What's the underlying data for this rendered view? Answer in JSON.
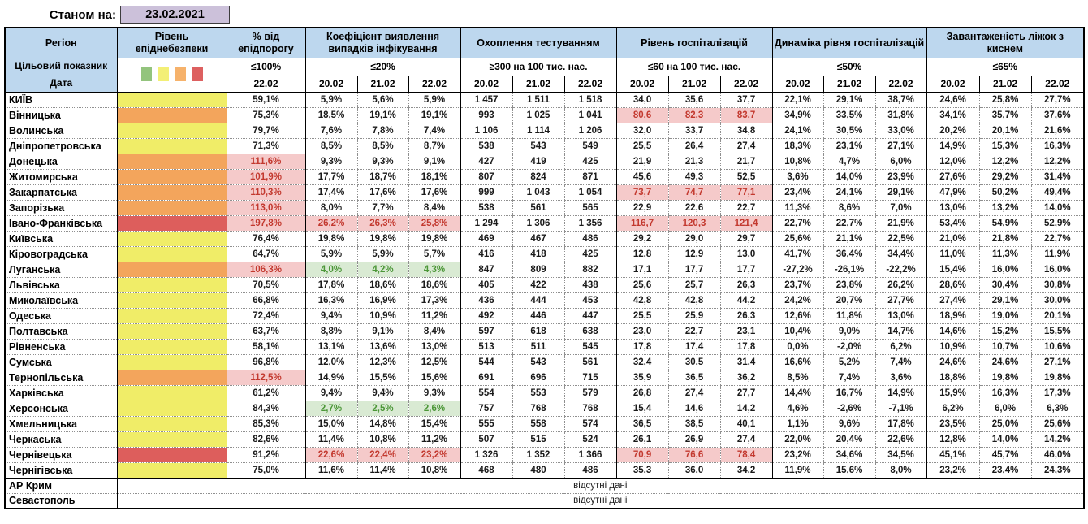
{
  "meta": {
    "as_of_label": "Станом на:",
    "as_of_date": "23.02.2021"
  },
  "header": {
    "region_label": "Регіон",
    "danger_label": "Рівень епіднебезпеки",
    "target_row_label": "Цільовий показник",
    "date_row_label": "Дата",
    "groups": [
      {
        "title": "% від епідпорогу",
        "target": "≤100%",
        "dates": [
          "22.02"
        ]
      },
      {
        "title": "Коефіцієнт виявлення випадків інфікування",
        "target": "≤20%",
        "dates": [
          "20.02",
          "21.02",
          "22.02"
        ]
      },
      {
        "title": "Охоплення тестуванням",
        "target": "≥300 на 100 тис. нас.",
        "dates": [
          "20.02",
          "21.02",
          "22.02"
        ]
      },
      {
        "title": "Рівень госпіталізацій",
        "target": "≤60 на 100 тис. нас.",
        "dates": [
          "20.02",
          "21.02",
          "22.02"
        ]
      },
      {
        "title": "Динаміка рівня госпіталізацій",
        "target": "≤50%",
        "dates": [
          "20.02",
          "21.02",
          "22.02"
        ]
      },
      {
        "title": "Завантаженість ліжок з киснем",
        "target": "≤65%",
        "dates": [
          "20.02",
          "21.02",
          "22.02"
        ]
      }
    ]
  },
  "legend_squares": [
    "green",
    "yellow",
    "orange",
    "red"
  ],
  "colors": {
    "header_bg": "#bdd7ee",
    "datebox_bg": "#ccc1da",
    "level_yellow": "#f0ed68",
    "level_orange": "#f3a55c",
    "level_red": "#dd5e5c",
    "legend_green": "#93c47d",
    "legend_yellow": "#f3ef76",
    "legend_orange": "#f6b26b",
    "legend_red": "#dd6060",
    "bad_bg": "#f5caca",
    "bad_text": "#c3392f",
    "good_bg": "#d9ead3",
    "good_text": "#4b9637"
  },
  "no_data_label": "відсутні дані",
  "rows": [
    {
      "region": "КИЇВ",
      "level": "yellow",
      "threshold": "59,1%",
      "detection": [
        "5,9%",
        "5,6%",
        "5,9%"
      ],
      "testing": [
        "1 457",
        "1 511",
        "1 518"
      ],
      "hospitalization": [
        "34,0",
        "35,6",
        "37,7"
      ],
      "dynamics": [
        "22,1%",
        "29,1%",
        "38,7%"
      ],
      "beds": [
        "24,6%",
        "25,8%",
        "27,7%"
      ],
      "hl": {}
    },
    {
      "region": "Вінницька",
      "level": "orange",
      "threshold": "75,3%",
      "detection": [
        "18,5%",
        "19,1%",
        "19,1%"
      ],
      "testing": [
        "993",
        "1 025",
        "1 041"
      ],
      "hospitalization": [
        "80,6",
        "82,3",
        "83,7"
      ],
      "dynamics": [
        "34,9%",
        "33,5%",
        "31,8%"
      ],
      "beds": [
        "34,1%",
        "35,7%",
        "37,6%"
      ],
      "hl": {
        "hospitalization": "bad"
      }
    },
    {
      "region": "Волинська",
      "level": "yellow",
      "threshold": "79,7%",
      "detection": [
        "7,6%",
        "7,8%",
        "7,4%"
      ],
      "testing": [
        "1 106",
        "1 114",
        "1 206"
      ],
      "hospitalization": [
        "32,0",
        "33,7",
        "34,8"
      ],
      "dynamics": [
        "24,1%",
        "30,5%",
        "33,0%"
      ],
      "beds": [
        "20,2%",
        "20,1%",
        "21,6%"
      ],
      "hl": {}
    },
    {
      "region": "Дніпропетровська",
      "level": "yellow",
      "threshold": "71,3%",
      "detection": [
        "8,5%",
        "8,5%",
        "8,7%"
      ],
      "testing": [
        "538",
        "543",
        "549"
      ],
      "hospitalization": [
        "25,5",
        "26,4",
        "27,4"
      ],
      "dynamics": [
        "18,3%",
        "23,1%",
        "27,1%"
      ],
      "beds": [
        "14,9%",
        "15,3%",
        "16,3%"
      ],
      "hl": {}
    },
    {
      "region": "Донецька",
      "level": "orange",
      "threshold": "111,6%",
      "detection": [
        "9,3%",
        "9,3%",
        "9,1%"
      ],
      "testing": [
        "427",
        "419",
        "425"
      ],
      "hospitalization": [
        "21,9",
        "21,3",
        "21,7"
      ],
      "dynamics": [
        "10,8%",
        "4,7%",
        "6,0%"
      ],
      "beds": [
        "12,0%",
        "12,2%",
        "12,2%"
      ],
      "hl": {
        "threshold": "bad"
      }
    },
    {
      "region": "Житомирська",
      "level": "orange",
      "threshold": "101,9%",
      "detection": [
        "17,7%",
        "18,7%",
        "18,1%"
      ],
      "testing": [
        "807",
        "824",
        "871"
      ],
      "hospitalization": [
        "45,6",
        "49,3",
        "52,5"
      ],
      "dynamics": [
        "3,6%",
        "14,0%",
        "23,9%"
      ],
      "beds": [
        "27,6%",
        "29,2%",
        "31,4%"
      ],
      "hl": {
        "threshold": "bad"
      }
    },
    {
      "region": "Закарпатська",
      "level": "orange",
      "threshold": "110,3%",
      "detection": [
        "17,4%",
        "17,6%",
        "17,6%"
      ],
      "testing": [
        "999",
        "1 043",
        "1 054"
      ],
      "hospitalization": [
        "73,7",
        "74,7",
        "77,1"
      ],
      "dynamics": [
        "23,4%",
        "24,1%",
        "29,1%"
      ],
      "beds": [
        "47,9%",
        "50,2%",
        "49,4%"
      ],
      "hl": {
        "threshold": "bad",
        "hospitalization": "bad"
      }
    },
    {
      "region": "Запорізька",
      "level": "orange",
      "threshold": "113,0%",
      "detection": [
        "8,0%",
        "7,7%",
        "8,4%"
      ],
      "testing": [
        "538",
        "561",
        "565"
      ],
      "hospitalization": [
        "22,9",
        "22,6",
        "22,7"
      ],
      "dynamics": [
        "11,3%",
        "8,6%",
        "7,0%"
      ],
      "beds": [
        "13,0%",
        "13,2%",
        "14,0%"
      ],
      "hl": {
        "threshold": "bad"
      }
    },
    {
      "region": "Івано-Франківська",
      "level": "red",
      "threshold": "197,8%",
      "detection": [
        "26,2%",
        "26,3%",
        "25,8%"
      ],
      "testing": [
        "1 294",
        "1 306",
        "1 356"
      ],
      "hospitalization": [
        "116,7",
        "120,3",
        "121,4"
      ],
      "dynamics": [
        "22,7%",
        "22,7%",
        "21,9%"
      ],
      "beds": [
        "53,4%",
        "54,9%",
        "52,9%"
      ],
      "hl": {
        "threshold": "bad",
        "detection": "bad",
        "hospitalization": "bad"
      }
    },
    {
      "region": "Київська",
      "level": "yellow",
      "threshold": "76,4%",
      "detection": [
        "19,8%",
        "19,8%",
        "19,8%"
      ],
      "testing": [
        "469",
        "467",
        "486"
      ],
      "hospitalization": [
        "29,2",
        "29,0",
        "29,7"
      ],
      "dynamics": [
        "25,6%",
        "21,1%",
        "22,5%"
      ],
      "beds": [
        "21,0%",
        "21,8%",
        "22,7%"
      ],
      "hl": {}
    },
    {
      "region": "Кіровоградська",
      "level": "yellow",
      "threshold": "64,7%",
      "detection": [
        "5,9%",
        "5,9%",
        "5,7%"
      ],
      "testing": [
        "416",
        "418",
        "425"
      ],
      "hospitalization": [
        "12,8",
        "12,9",
        "13,0"
      ],
      "dynamics": [
        "41,7%",
        "36,4%",
        "34,4%"
      ],
      "beds": [
        "11,0%",
        "11,3%",
        "11,9%"
      ],
      "hl": {}
    },
    {
      "region": "Луганська",
      "level": "orange",
      "threshold": "106,3%",
      "detection": [
        "4,0%",
        "4,2%",
        "4,3%"
      ],
      "testing": [
        "847",
        "809",
        "882"
      ],
      "hospitalization": [
        "17,1",
        "17,7",
        "17,7"
      ],
      "dynamics": [
        "-27,2%",
        "-26,1%",
        "-22,2%"
      ],
      "beds": [
        "15,4%",
        "16,0%",
        "16,0%"
      ],
      "hl": {
        "threshold": "bad",
        "detection": "good"
      }
    },
    {
      "region": "Львівська",
      "level": "yellow",
      "threshold": "70,5%",
      "detection": [
        "17,8%",
        "18,6%",
        "18,6%"
      ],
      "testing": [
        "405",
        "422",
        "438"
      ],
      "hospitalization": [
        "25,6",
        "25,7",
        "26,3"
      ],
      "dynamics": [
        "23,7%",
        "23,8%",
        "26,2%"
      ],
      "beds": [
        "28,6%",
        "30,4%",
        "30,8%"
      ],
      "hl": {}
    },
    {
      "region": "Миколаївська",
      "level": "yellow",
      "threshold": "66,8%",
      "detection": [
        "16,3%",
        "16,9%",
        "17,3%"
      ],
      "testing": [
        "436",
        "444",
        "453"
      ],
      "hospitalization": [
        "42,8",
        "42,8",
        "44,2"
      ],
      "dynamics": [
        "24,2%",
        "20,7%",
        "27,7%"
      ],
      "beds": [
        "27,4%",
        "29,1%",
        "30,0%"
      ],
      "hl": {}
    },
    {
      "region": "Одеська",
      "level": "yellow",
      "threshold": "72,4%",
      "detection": [
        "9,4%",
        "10,9%",
        "11,2%"
      ],
      "testing": [
        "492",
        "446",
        "447"
      ],
      "hospitalization": [
        "25,5",
        "25,9",
        "26,3"
      ],
      "dynamics": [
        "12,6%",
        "11,8%",
        "13,0%"
      ],
      "beds": [
        "18,9%",
        "19,0%",
        "20,1%"
      ],
      "hl": {}
    },
    {
      "region": "Полтавська",
      "level": "yellow",
      "threshold": "63,7%",
      "detection": [
        "8,8%",
        "9,1%",
        "8,4%"
      ],
      "testing": [
        "597",
        "618",
        "638"
      ],
      "hospitalization": [
        "23,0",
        "22,7",
        "23,1"
      ],
      "dynamics": [
        "10,4%",
        "9,0%",
        "14,7%"
      ],
      "beds": [
        "14,6%",
        "15,2%",
        "15,5%"
      ],
      "hl": {}
    },
    {
      "region": "Рівненська",
      "level": "yellow",
      "threshold": "58,1%",
      "detection": [
        "13,1%",
        "13,6%",
        "13,0%"
      ],
      "testing": [
        "513",
        "511",
        "545"
      ],
      "hospitalization": [
        "17,8",
        "17,4",
        "17,8"
      ],
      "dynamics": [
        "0,0%",
        "-2,0%",
        "6,2%"
      ],
      "beds": [
        "10,9%",
        "10,7%",
        "10,6%"
      ],
      "hl": {}
    },
    {
      "region": "Сумська",
      "level": "yellow",
      "threshold": "96,8%",
      "detection": [
        "12,0%",
        "12,3%",
        "12,5%"
      ],
      "testing": [
        "544",
        "543",
        "561"
      ],
      "hospitalization": [
        "32,4",
        "30,5",
        "31,4"
      ],
      "dynamics": [
        "16,6%",
        "5,2%",
        "7,4%"
      ],
      "beds": [
        "24,6%",
        "24,6%",
        "27,1%"
      ],
      "hl": {}
    },
    {
      "region": "Тернопільська",
      "level": "orange",
      "threshold": "112,5%",
      "detection": [
        "14,9%",
        "15,5%",
        "15,6%"
      ],
      "testing": [
        "691",
        "696",
        "715"
      ],
      "hospitalization": [
        "35,9",
        "36,5",
        "36,2"
      ],
      "dynamics": [
        "8,5%",
        "7,4%",
        "3,6%"
      ],
      "beds": [
        "18,8%",
        "19,8%",
        "19,8%"
      ],
      "hl": {
        "threshold": "bad"
      }
    },
    {
      "region": "Харківська",
      "level": "yellow",
      "threshold": "61,2%",
      "detection": [
        "9,4%",
        "9,4%",
        "9,3%"
      ],
      "testing": [
        "554",
        "553",
        "579"
      ],
      "hospitalization": [
        "26,8",
        "27,4",
        "27,7"
      ],
      "dynamics": [
        "14,4%",
        "16,7%",
        "14,9%"
      ],
      "beds": [
        "15,9%",
        "16,3%",
        "17,3%"
      ],
      "hl": {}
    },
    {
      "region": "Херсонська",
      "level": "yellow",
      "threshold": "84,3%",
      "detection": [
        "2,7%",
        "2,5%",
        "2,6%"
      ],
      "testing": [
        "757",
        "768",
        "768"
      ],
      "hospitalization": [
        "15,4",
        "14,6",
        "14,2"
      ],
      "dynamics": [
        "4,6%",
        "-2,6%",
        "-7,1%"
      ],
      "beds": [
        "6,2%",
        "6,0%",
        "6,3%"
      ],
      "hl": {
        "detection": "good"
      }
    },
    {
      "region": "Хмельницька",
      "level": "yellow",
      "threshold": "85,3%",
      "detection": [
        "15,0%",
        "14,8%",
        "15,4%"
      ],
      "testing": [
        "555",
        "558",
        "574"
      ],
      "hospitalization": [
        "36,5",
        "38,5",
        "40,1"
      ],
      "dynamics": [
        "1,1%",
        "9,6%",
        "17,8%"
      ],
      "beds": [
        "23,5%",
        "25,0%",
        "25,6%"
      ],
      "hl": {}
    },
    {
      "region": "Черкаська",
      "level": "yellow",
      "threshold": "82,6%",
      "detection": [
        "11,4%",
        "10,8%",
        "11,2%"
      ],
      "testing": [
        "507",
        "515",
        "524"
      ],
      "hospitalization": [
        "26,1",
        "26,9",
        "27,4"
      ],
      "dynamics": [
        "22,0%",
        "20,4%",
        "22,6%"
      ],
      "beds": [
        "12,8%",
        "14,0%",
        "14,2%"
      ],
      "hl": {}
    },
    {
      "region": "Чернівецька",
      "level": "red",
      "threshold": "91,2%",
      "detection": [
        "22,6%",
        "22,4%",
        "23,2%"
      ],
      "testing": [
        "1 326",
        "1 352",
        "1 366"
      ],
      "hospitalization": [
        "70,9",
        "76,6",
        "78,4"
      ],
      "dynamics": [
        "23,2%",
        "34,6%",
        "34,5%"
      ],
      "beds": [
        "45,1%",
        "45,7%",
        "46,0%"
      ],
      "hl": {
        "detection": "bad",
        "hospitalization": "bad"
      }
    },
    {
      "region": "Чернігівська",
      "level": "yellow",
      "threshold": "75,0%",
      "detection": [
        "11,6%",
        "11,4%",
        "10,8%"
      ],
      "testing": [
        "468",
        "480",
        "486"
      ],
      "hospitalization": [
        "35,3",
        "36,0",
        "34,2"
      ],
      "dynamics": [
        "11,9%",
        "15,6%",
        "8,0%"
      ],
      "beds": [
        "23,2%",
        "23,4%",
        "24,3%"
      ],
      "hl": {}
    },
    {
      "region": "АР Крим",
      "no_data": true
    },
    {
      "region": "Севастополь",
      "no_data": true
    }
  ]
}
